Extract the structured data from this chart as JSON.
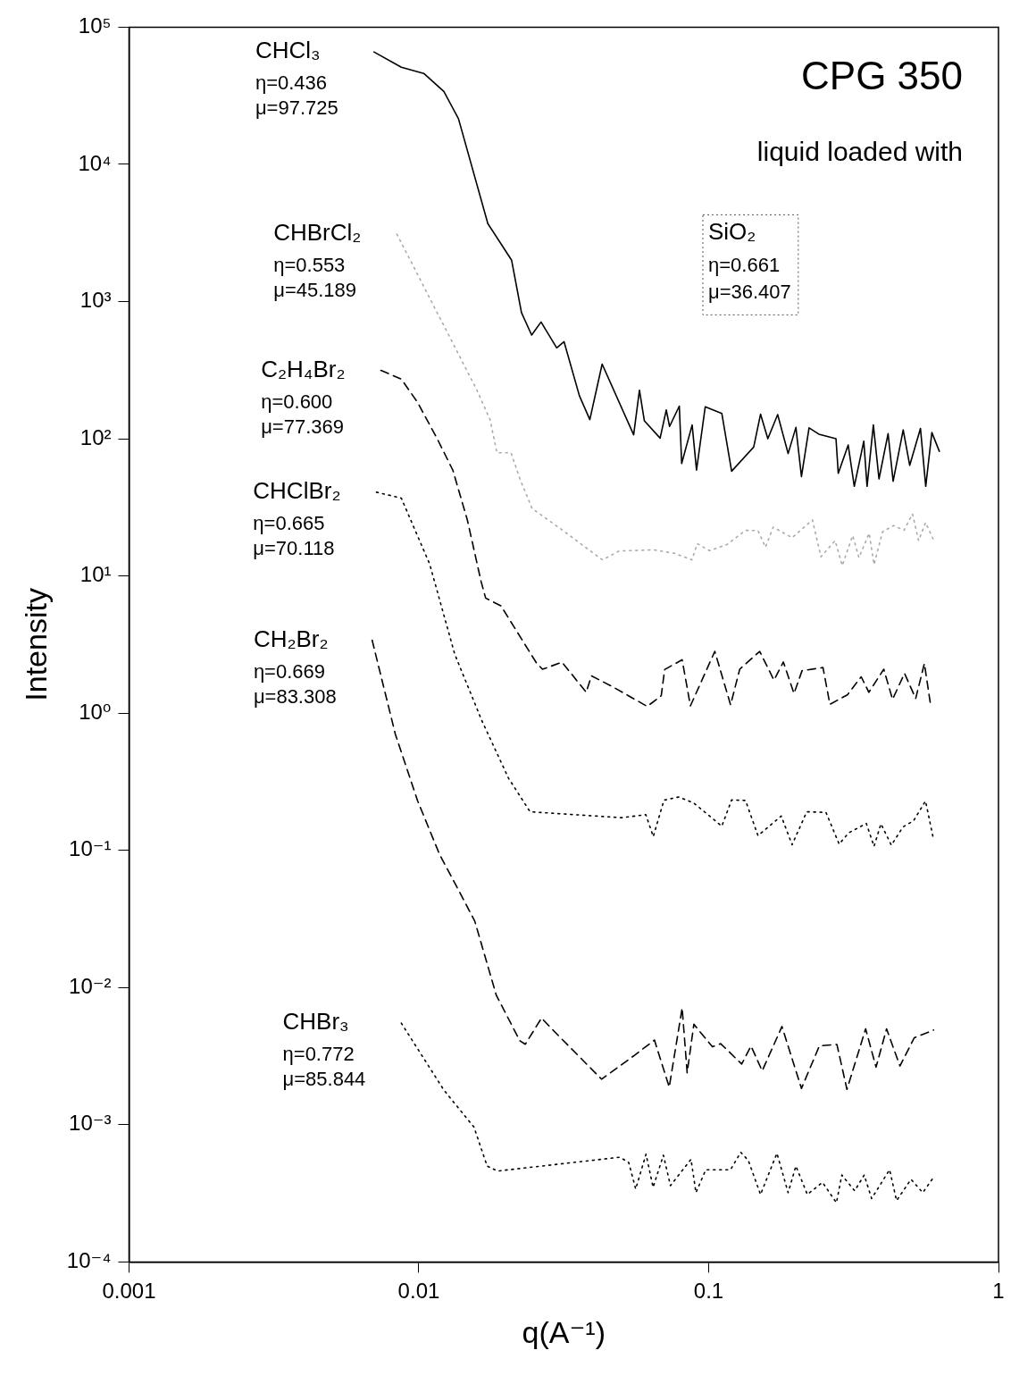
{
  "chart_data": {
    "type": "line",
    "title": "CPG 350",
    "subtitle": "liquid loaded with",
    "xlabel": "q(A⁻¹)",
    "ylabel": "Intensity",
    "log": "xy",
    "grid": false,
    "legend": false,
    "marker": "none",
    "xlim": [
      0.001,
      1
    ],
    "xticks": [
      0.001,
      0.01,
      0.1,
      1
    ],
    "ylim": [
      0.0001,
      100000
    ],
    "yticks": [
      {
        "value": 0.0001,
        "label": "10⁻⁴"
      },
      {
        "value": 0.001,
        "label": "10⁻³"
      },
      {
        "value": 0.01,
        "label": "10⁻²"
      },
      {
        "value": 0.1,
        "label": "10⁻¹"
      },
      {
        "value": 1,
        "label": "10⁰"
      },
      {
        "value": 10,
        "label": "10¹"
      },
      {
        "value": 100,
        "label": "10²"
      },
      {
        "value": 1000,
        "label": "10³"
      },
      {
        "value": 10000,
        "label": "10⁴"
      },
      {
        "value": 100000,
        "label": "10⁵"
      }
    ],
    "annotations": [
      "η=0.436",
      "μ=97.725",
      "η=0.553",
      "μ=45.189",
      "η=0.600",
      "μ=77.369",
      "η=0.665",
      "μ=70.118",
      "η=0.669",
      "μ=83.308",
      "η=0.772",
      "μ=85.844",
      "SiO₂",
      "η=0.661",
      "μ=36.407"
    ],
    "series": [
      {
        "name": "CHCl₃",
        "color": "#000000",
        "line_style": "solid",
        "x": [
          0.007,
          0.0087,
          0.0104,
          0.0122,
          0.0137,
          0.0173,
          0.0209,
          0.0226,
          0.0245,
          0.0264,
          0.0299,
          0.0317,
          0.0358,
          0.0389,
          0.0429,
          0.0551,
          0.0577,
          0.06,
          0.068,
          0.0714,
          0.0733,
          0.0792,
          0.0807,
          0.0877,
          0.0908,
          0.0973,
          0.111,
          0.12,
          0.143,
          0.151,
          0.16,
          0.173,
          0.188,
          0.2,
          0.209,
          0.222,
          0.24,
          0.275,
          0.28,
          0.303,
          0.318,
          0.343,
          0.352,
          0.37,
          0.387,
          0.416,
          0.433,
          0.469,
          0.494,
          0.538,
          0.561,
          0.589,
          0.625
        ],
        "values": [
          66000,
          51000,
          46000,
          34000,
          21500,
          3700,
          2000,
          830,
          570,
          710,
          460,
          510,
          206,
          138,
          350,
          107,
          226,
          135,
          101,
          162,
          123,
          173,
          66,
          126,
          59,
          171,
          153,
          58,
          87,
          151,
          100,
          150,
          78,
          121,
          53,
          120,
          108,
          100,
          56,
          90,
          45,
          96,
          45,
          126,
          51,
          109,
          49,
          116,
          64,
          119,
          45,
          111,
          81
        ]
      },
      {
        "name": "CHBrCl₂",
        "color": "#aaaaaa",
        "line_style": "dotted",
        "x": [
          0.0084,
          0.0158,
          0.0176,
          0.0186,
          0.0208,
          0.0224,
          0.0246,
          0.0309,
          0.043,
          0.0491,
          0.0647,
          0.0764,
          0.0875,
          0.0914,
          0.1007,
          0.116,
          0.134,
          0.148,
          0.157,
          0.167,
          0.194,
          0.228,
          0.244,
          0.273,
          0.289,
          0.314,
          0.33,
          0.358,
          0.372,
          0.398,
          0.435,
          0.472,
          0.505,
          0.53,
          0.56,
          0.596
        ],
        "values": [
          3100,
          230,
          138,
          79,
          79,
          50,
          31,
          22,
          13.1,
          15.2,
          15.5,
          14.6,
          13.1,
          17.2,
          15.3,
          17,
          21.5,
          21.4,
          16.2,
          22.7,
          19,
          25.6,
          13.8,
          18.1,
          11.9,
          19.7,
          13.6,
          20.5,
          12.1,
          21,
          23.3,
          21.5,
          28.3,
          18.1,
          24.5,
          18.5
        ]
      },
      {
        "name": "C₂H₄Br₂",
        "color": "#000000",
        "line_style": "dashed",
        "x": [
          0.0074,
          0.0087,
          0.0099,
          0.0116,
          0.0131,
          0.0147,
          0.0164,
          0.017,
          0.0192,
          0.0254,
          0.0267,
          0.0312,
          0.0378,
          0.0394,
          0.0463,
          0.0614,
          0.0686,
          0.0705,
          0.081,
          0.0865,
          0.105,
          0.119,
          0.128,
          0.15,
          0.168,
          0.181,
          0.197,
          0.21,
          0.248,
          0.262,
          0.301,
          0.336,
          0.357,
          0.402,
          0.431,
          0.474,
          0.518,
          0.555,
          0.583
        ],
        "values": [
          315,
          272,
          184,
          99,
          59,
          25.6,
          9.1,
          6.9,
          6.05,
          2.34,
          2.09,
          2.35,
          1.42,
          1.87,
          1.57,
          1.12,
          1.34,
          2.08,
          2.45,
          1.13,
          2.82,
          1.15,
          2.09,
          2.82,
          1.74,
          2.36,
          1.39,
          2.04,
          2.15,
          1.16,
          1.36,
          1.84,
          1.42,
          2.09,
          1.26,
          1.95,
          1.28,
          2.3,
          1.15
        ]
      },
      {
        "name": "CHClBr₂",
        "color": "#000000",
        "line_style": "dotted",
        "x": [
          0.00714,
          0.0087,
          0.0109,
          0.0133,
          0.0165,
          0.0204,
          0.0242,
          0.0501,
          0.0607,
          0.0644,
          0.0701,
          0.0787,
          0.0887,
          0.111,
          0.12,
          0.134,
          0.148,
          0.178,
          0.194,
          0.218,
          0.254,
          0.282,
          0.304,
          0.35,
          0.372,
          0.393,
          0.427,
          0.468,
          0.509,
          0.56,
          0.597
        ],
        "values": [
          40.8,
          36.9,
          12.2,
          2.69,
          0.88,
          0.335,
          0.191,
          0.173,
          0.182,
          0.126,
          0.232,
          0.245,
          0.222,
          0.15,
          0.233,
          0.231,
          0.128,
          0.178,
          0.11,
          0.191,
          0.189,
          0.111,
          0.134,
          0.157,
          0.107,
          0.156,
          0.109,
          0.148,
          0.164,
          0.229,
          0.12
        ]
      },
      {
        "name": "CH₂Br₂",
        "color": "#000000",
        "line_style": "dashed",
        "x": [
          0.0069,
          0.0083,
          0.0099,
          0.0118,
          0.0136,
          0.0156,
          0.0185,
          0.0223,
          0.0233,
          0.0265,
          0.0293,
          0.0427,
          0.0555,
          0.065,
          0.0731,
          0.081,
          0.0843,
          0.0889,
          0.103,
          0.11,
          0.13,
          0.14,
          0.153,
          0.179,
          0.209,
          0.241,
          0.277,
          0.3,
          0.348,
          0.378,
          0.411,
          0.457,
          0.512,
          0.597
        ],
        "values": [
          3.4,
          0.7,
          0.23,
          0.093,
          0.053,
          0.0304,
          0.0088,
          0.0041,
          0.00386,
          0.006,
          0.0048,
          0.00215,
          0.00321,
          0.00414,
          0.00188,
          0.0071,
          0.00239,
          0.0054,
          0.0037,
          0.0039,
          0.00277,
          0.00375,
          0.00247,
          0.0052,
          0.00184,
          0.00376,
          0.00385,
          0.00181,
          0.005,
          0.00263,
          0.005,
          0.00268,
          0.0043,
          0.0049
        ]
      },
      {
        "name": "CHBr₃",
        "color": "#000000",
        "line_style": "dotted",
        "x": [
          0.0087,
          0.0122,
          0.0155,
          0.0172,
          0.0187,
          0.0494,
          0.053,
          0.056,
          0.0608,
          0.0643,
          0.0698,
          0.0738,
          0.0869,
          0.0904,
          0.0977,
          0.119,
          0.129,
          0.137,
          0.151,
          0.172,
          0.188,
          0.2,
          0.219,
          0.247,
          0.276,
          0.288,
          0.319,
          0.344,
          0.365,
          0.421,
          0.445,
          0.499,
          0.548,
          0.6
        ],
        "values": [
          0.0055,
          0.00179,
          0.00096,
          0.0005,
          0.00046,
          0.00058,
          0.00053,
          0.00034,
          0.00061,
          0.00035,
          0.0006,
          0.00036,
          0.00056,
          0.00032,
          0.00047,
          0.00047,
          0.00063,
          0.00055,
          0.00031,
          0.00062,
          0.00032,
          0.0005,
          0.00031,
          0.00038,
          0.00027,
          0.00043,
          0.00033,
          0.00043,
          0.00029,
          0.00047,
          0.00028,
          0.0004,
          0.00032,
          0.00042
        ]
      }
    ]
  }
}
